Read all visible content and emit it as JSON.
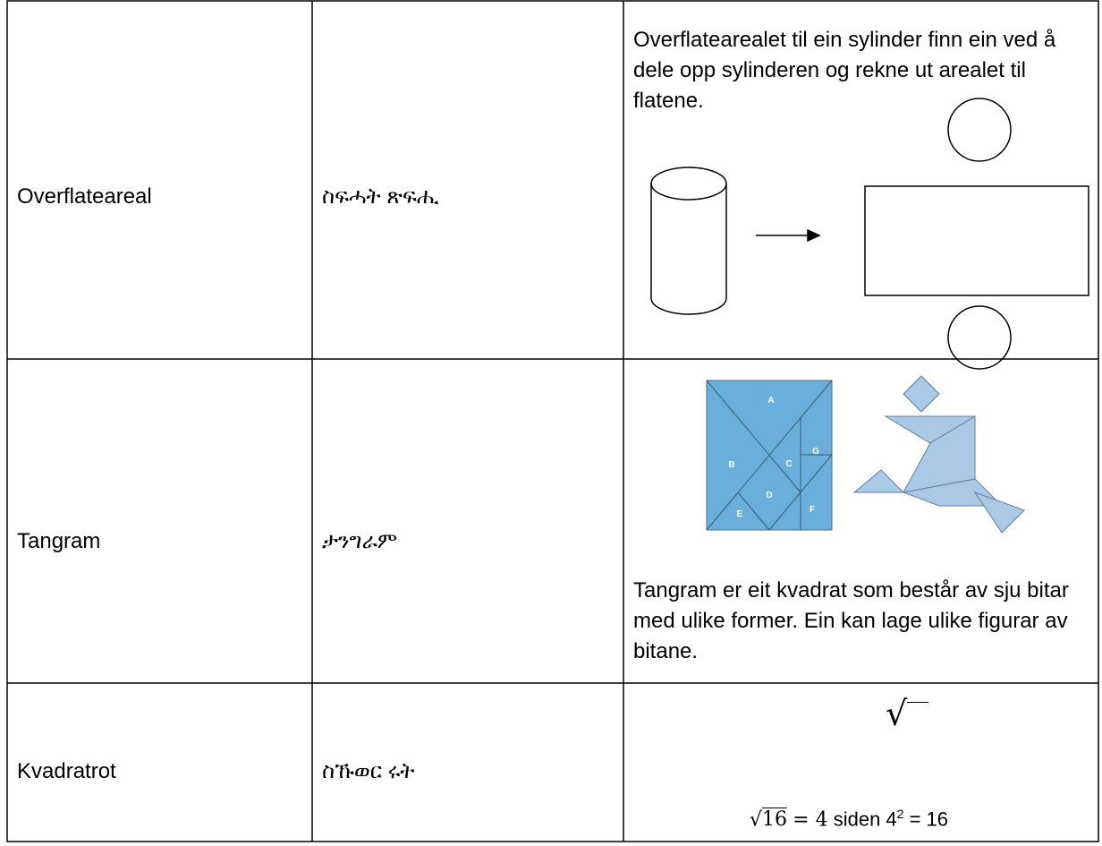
{
  "table": {
    "rows": [
      {
        "term": "Overflateareal",
        "translation": "ስፍሓት ጽፍሒ",
        "explanation": "Overflatearealet til ein sylinder finn ein ved å dele opp sylinderen og rekne ut arealet til flatene."
      },
      {
        "term": "Tangram",
        "translation": "ታንግራም",
        "explanation": "Tangram er eit kvadrat som består av sju bitar med ulike former. Ein kan lage ulike figurar av bitane.",
        "tangram_labels": [
          "A",
          "B",
          "C",
          "D",
          "E",
          "F",
          "G"
        ]
      },
      {
        "term": "Kvadratrot",
        "translation": "ስኹወር ሩት",
        "symbol": "√",
        "formula": {
          "radical": "√",
          "radicand": "16",
          "equals": "= 4",
          "text": "siden 4",
          "superscript": "2",
          "tail": "= 16"
        }
      }
    ]
  }
}
